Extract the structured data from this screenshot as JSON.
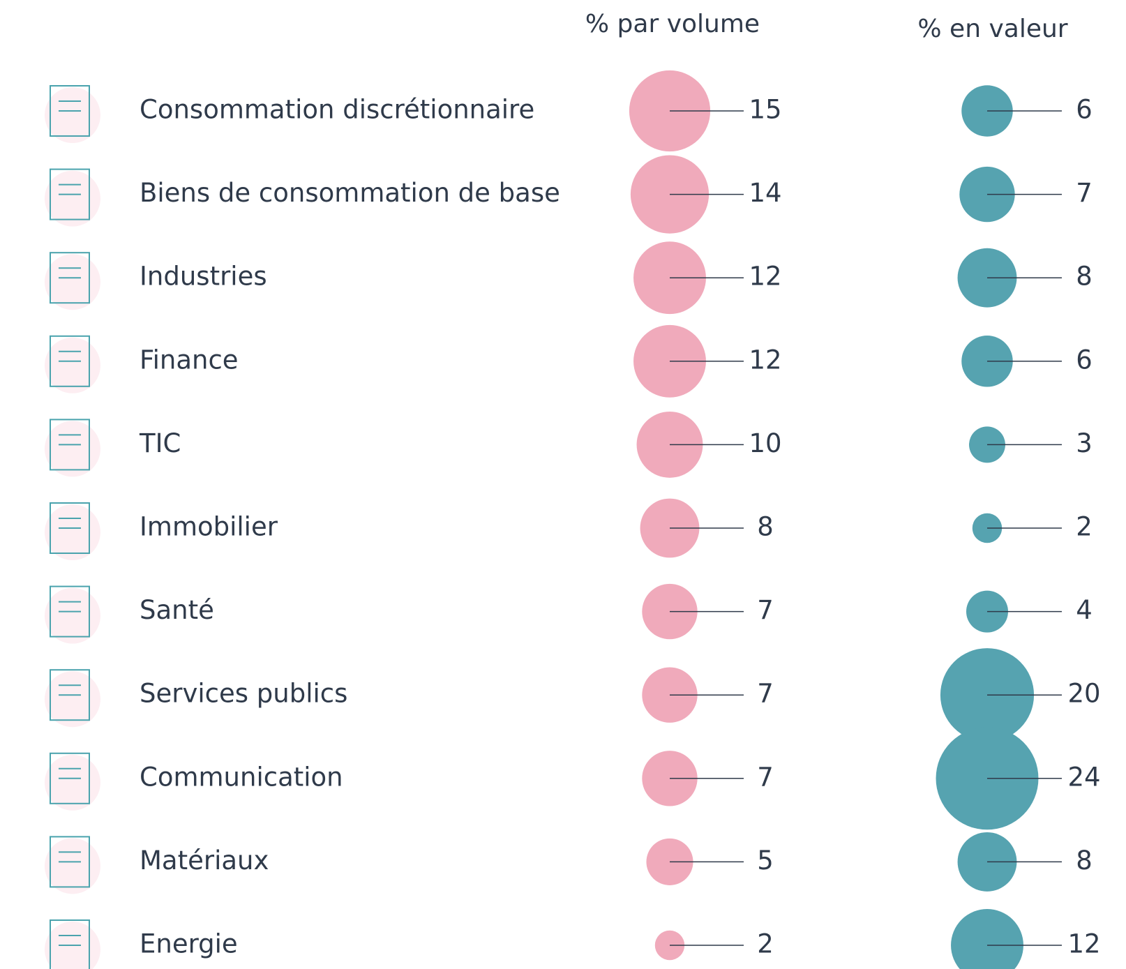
{
  "chart_data": {
    "type": "bubble_table",
    "categories": [
      "Consommation discrétionnaire",
      "Biens de consommation de base",
      "Industries",
      "Finance",
      "TIC",
      "Immobilier",
      "Santé",
      "Services publics",
      "Communication",
      "Matériaux",
      "Energie"
    ],
    "series": [
      {
        "name": "% par volume",
        "color": "#f0aabb",
        "values": [
          15,
          14,
          12,
          12,
          10,
          8,
          7,
          7,
          7,
          5,
          2
        ]
      },
      {
        "name": "% en valeur",
        "color": "#56a3b0",
        "values": [
          6,
          7,
          8,
          6,
          3,
          2,
          4,
          20,
          24,
          8,
          12
        ]
      }
    ]
  }
}
